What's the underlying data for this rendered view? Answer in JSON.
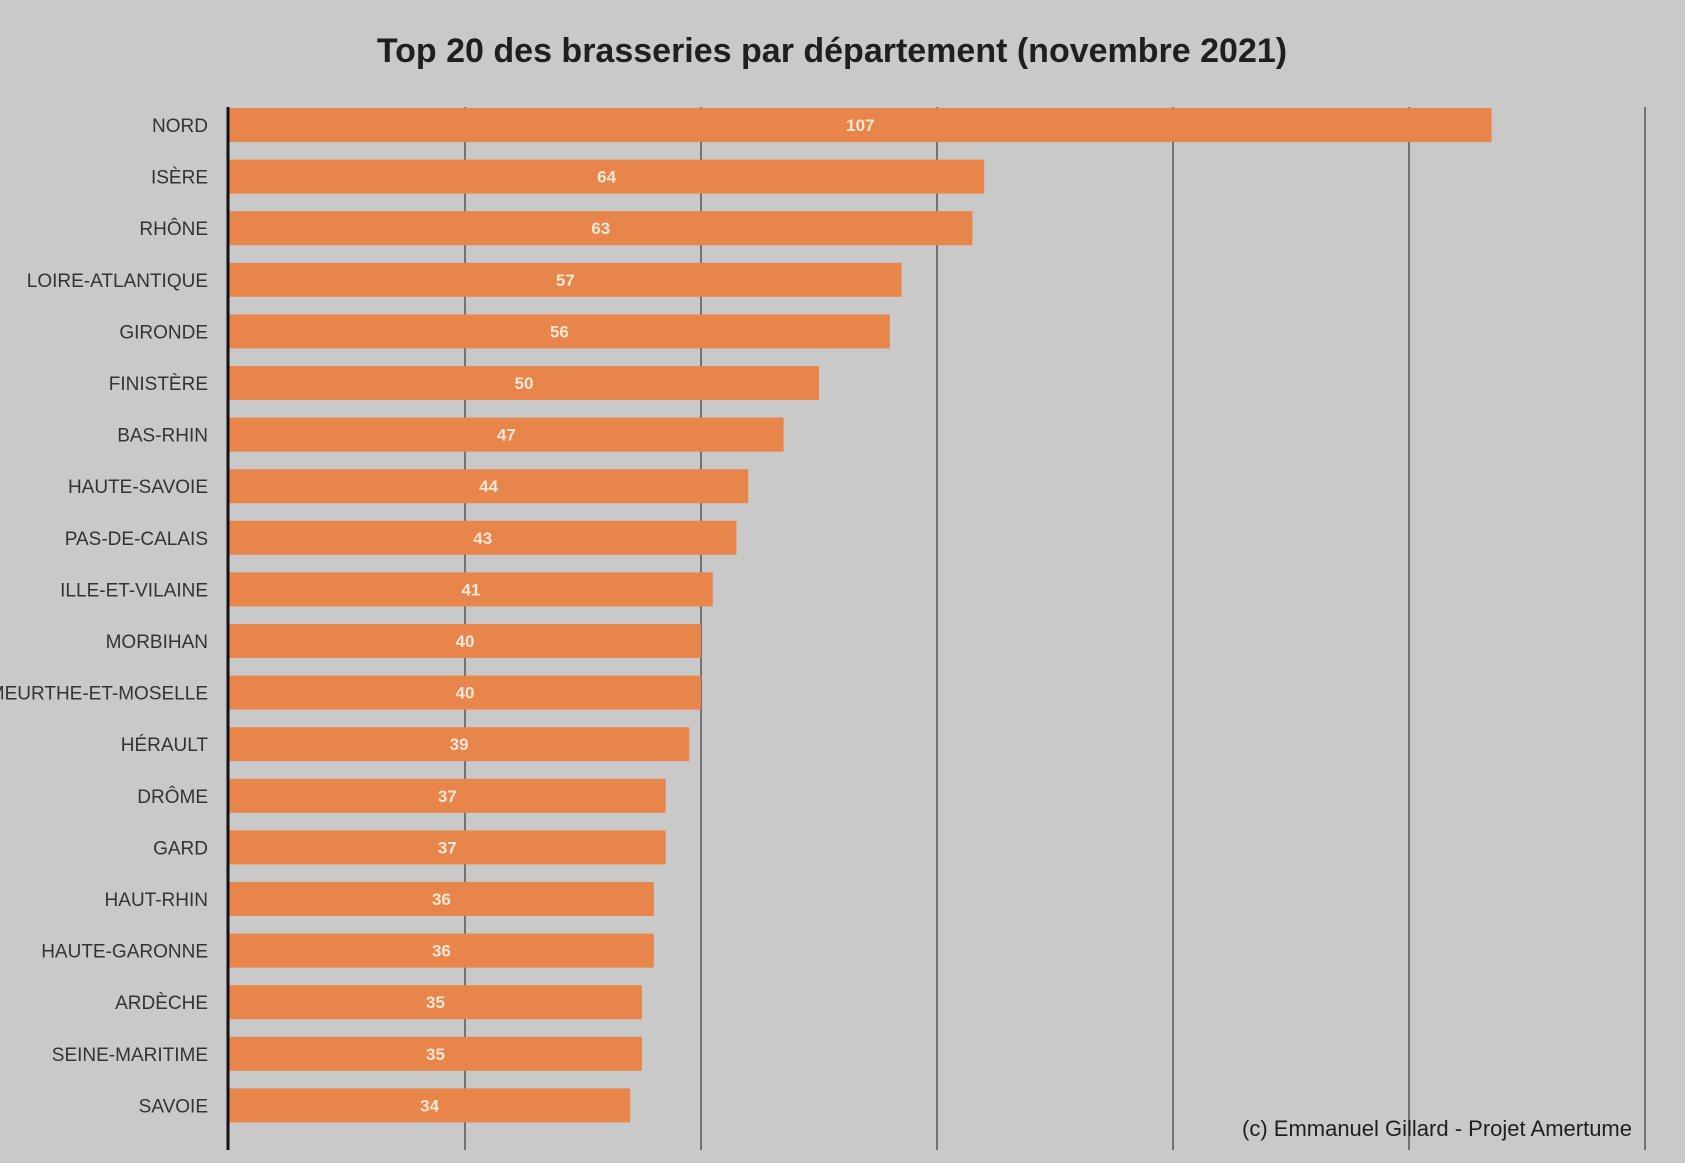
{
  "chart_data": {
    "type": "bar",
    "orientation": "horizontal",
    "title": "Top 20 des brasseries par département (novembre 2021)",
    "categories": [
      "NORD",
      "ISÈRE",
      "RHÔNE",
      "LOIRE-ATLANTIQUE",
      "GIRONDE",
      "FINISTÈRE",
      "BAS-RHIN",
      "HAUTE-SAVOIE",
      "PAS-DE-CALAIS",
      "ILLE-ET-VILAINE",
      "MORBIHAN",
      "MEURTHE-ET-MOSELLE",
      "HÉRAULT",
      "DRÔME",
      "GARD",
      "HAUT-RHIN",
      "HAUTE-GARONNE",
      "ARDÈCHE",
      "SEINE-MARITIME",
      "SAVOIE"
    ],
    "values": [
      107,
      64,
      63,
      57,
      56,
      50,
      47,
      44,
      43,
      41,
      40,
      40,
      39,
      37,
      37,
      36,
      36,
      35,
      35,
      34
    ],
    "xlim": [
      0,
      120
    ],
    "grid": true,
    "gridlines": [
      20,
      40,
      60,
      80,
      100,
      120
    ],
    "bar_color": "#e8854a",
    "data_labels": true,
    "credit": "(c) Emmanuel Gillard - Projet Amertume"
  }
}
